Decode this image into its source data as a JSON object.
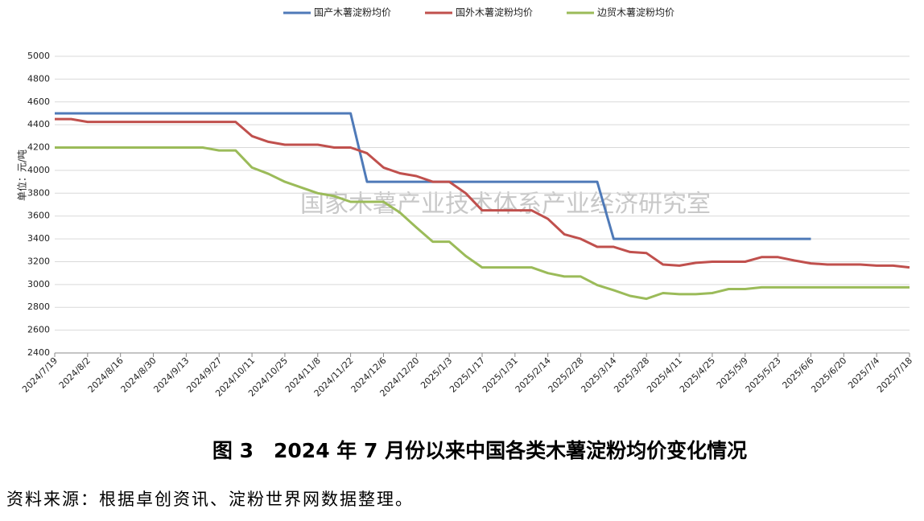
{
  "chart_data": {
    "type": "line",
    "title": "图 3　2024 年 7 月份以来中国各类木薯淀粉均价变化情况",
    "source": "资料来源：根据卓创资讯、淀粉世界网数据整理。",
    "watermark": "国家木薯产业技术体系产业经济研究室",
    "y_label": "单位：元/吨",
    "categories": [
      "2024/7/19",
      null,
      "2024/8/2",
      null,
      "2024/8/16",
      null,
      "2024/8/30",
      null,
      "2024/9/13",
      null,
      "2024/9/27",
      null,
      "2024/10/11",
      null,
      "2024/10/25",
      null,
      "2024/11/8",
      null,
      "2024/11/22",
      null,
      "2024/12/6",
      null,
      "2024/12/20",
      null,
      "2025/1/3",
      null,
      "2025/1/17",
      null,
      "2025/1/31",
      null,
      "2025/2/14",
      null,
      "2025/2/28",
      null,
      "2025/3/14",
      null,
      "2025/3/28",
      null,
      "2025/4/11",
      null,
      "2025/4/25",
      null,
      "2025/5/9",
      null,
      "2025/5/23",
      null,
      "2025/6/6",
      null,
      "2025/6/20",
      null,
      "2025/7/4",
      null,
      "2025/7/18"
    ],
    "series": [
      {
        "name": "国产木薯淀粉均价",
        "color": "#4f7ab8",
        "values": [
          4500,
          4500,
          4500,
          4500,
          4500,
          4500,
          4500,
          4500,
          4500,
          4500,
          4500,
          4500,
          4500,
          4500,
          4500,
          4500,
          4500,
          4500,
          4500,
          3900,
          3900,
          3900,
          3900,
          3900,
          3900,
          3900,
          3900,
          3900,
          3900,
          3900,
          3900,
          3900,
          3900,
          3900,
          3400,
          3400,
          3400,
          3400,
          3400,
          3400,
          3400,
          3400,
          3400,
          3400,
          3400,
          3400,
          3400,
          null,
          null,
          null,
          null,
          null,
          null
        ]
      },
      {
        "name": "国外木薯淀粉均价",
        "color": "#c0504d",
        "values": [
          4450,
          4450,
          4425,
          4425,
          4425,
          4425,
          4425,
          4425,
          4425,
          4425,
          4425,
          4425,
          4300,
          4250,
          4225,
          4225,
          4225,
          4200,
          4200,
          4150,
          4025,
          3975,
          3950,
          3900,
          3900,
          3800,
          3650,
          3650,
          3650,
          3650,
          3575,
          3440,
          3400,
          3330,
          3330,
          3285,
          3275,
          3175,
          3165,
          3190,
          3200,
          3200,
          3200,
          3240,
          3240,
          3210,
          3185,
          3175,
          3175,
          3175,
          3165,
          3165,
          3150
        ]
      },
      {
        "name": "边贸木薯淀粉均价",
        "color": "#9bbb59",
        "values": [
          4200,
          4200,
          4200,
          4200,
          4200,
          4200,
          4200,
          4200,
          4200,
          4200,
          4175,
          4175,
          4025,
          3970,
          3900,
          3850,
          3800,
          3775,
          3725,
          3725,
          3725,
          3630,
          3500,
          3375,
          3375,
          3250,
          3150,
          3150,
          3150,
          3150,
          3100,
          3070,
          3070,
          2995,
          2950,
          2900,
          2875,
          2925,
          2915,
          2915,
          2925,
          2960,
          2960,
          2975,
          2975,
          2975,
          2975,
          2975,
          2975,
          2975,
          2975,
          2975,
          2975
        ]
      }
    ],
    "ylim": [
      2400,
      5000
    ],
    "yticks": [
      2400,
      2600,
      2800,
      3000,
      3200,
      3400,
      3600,
      3800,
      4000,
      4200,
      4400,
      4600,
      4800,
      5000
    ],
    "grid": true
  }
}
